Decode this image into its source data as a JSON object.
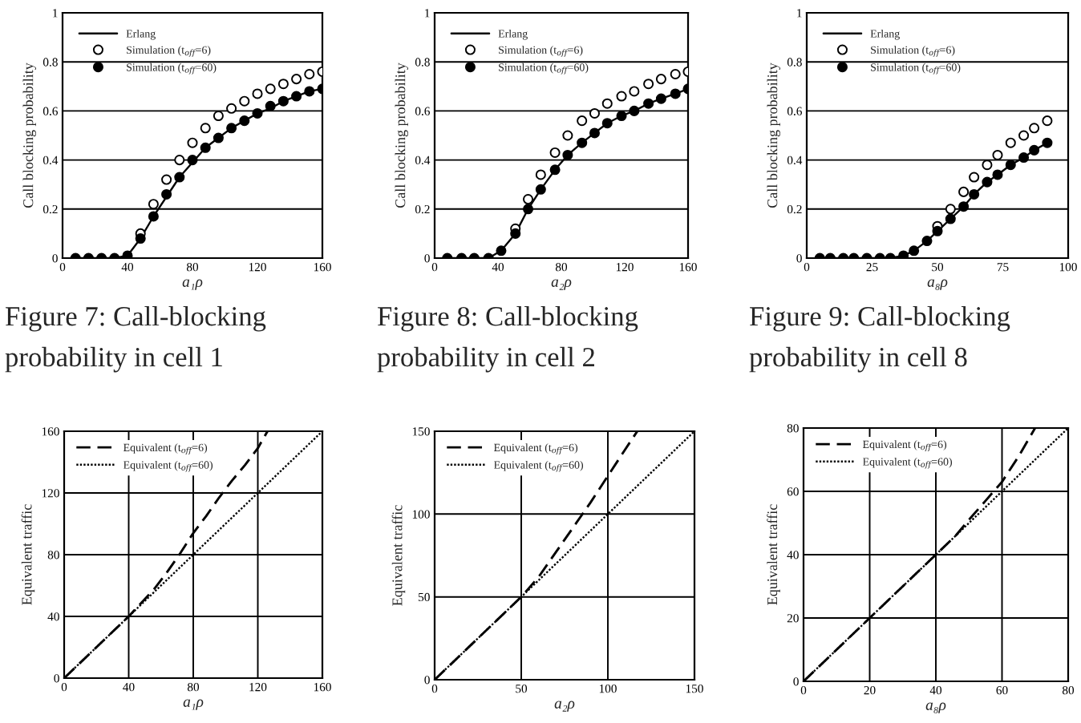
{
  "chart_data": [
    {
      "type": "line",
      "title": "Figure 7: Call-blocking probability in cell 1",
      "xlabel": "a₁ρ",
      "ylabel": "Call blocking probability",
      "x": [
        8,
        16,
        24,
        32,
        40,
        48,
        56,
        64,
        72,
        80,
        88,
        96,
        104,
        112,
        120,
        128,
        136,
        144,
        152,
        160
      ],
      "xlim": [
        0,
        160
      ],
      "xticks": [
        0,
        40,
        80,
        120,
        160
      ],
      "ylim": [
        0,
        1
      ],
      "yticks": [
        0,
        0.2,
        0.4,
        0.6,
        0.8,
        1
      ],
      "grid": "y",
      "legend": "top left",
      "series": [
        {
          "name": "Erlang",
          "type": "line",
          "color": "#000000",
          "line_style": "solid",
          "values": [
            0,
            0,
            0,
            0,
            0.01,
            0.08,
            0.17,
            0.25,
            0.33,
            0.39,
            0.45,
            0.49,
            0.53,
            0.56,
            0.59,
            0.61,
            0.64,
            0.66,
            0.68,
            0.69
          ]
        },
        {
          "name": "Simulation (t$_{off}$=6)",
          "type": "scatter",
          "marker": "circle",
          "color": "#ffffff",
          "values": [
            null,
            null,
            null,
            null,
            null,
            0.1,
            0.22,
            0.32,
            0.4,
            0.47,
            0.53,
            0.58,
            0.61,
            0.64,
            0.67,
            0.69,
            0.71,
            0.73,
            0.75,
            0.76
          ]
        },
        {
          "name": "Simulation (t$_{off}$=60)",
          "type": "scatter",
          "marker": "circle",
          "color": "#000000",
          "values": [
            0,
            0,
            0,
            0,
            0.01,
            0.08,
            0.17,
            0.26,
            0.33,
            0.4,
            0.45,
            0.49,
            0.53,
            0.56,
            0.59,
            0.62,
            0.64,
            0.66,
            0.68,
            0.69
          ]
        }
      ]
    },
    {
      "type": "line",
      "title": "Figure 8: Call-blocking probability in cell 2",
      "xlabel": "a₂ρ",
      "ylabel": "Call blocking probability",
      "x": [
        8,
        17,
        25,
        34,
        42,
        51,
        59,
        67,
        76,
        84,
        93,
        101,
        109,
        118,
        126,
        135,
        143,
        152,
        160
      ],
      "xlim": [
        0,
        160
      ],
      "xticks": [
        0,
        40,
        80,
        120,
        160
      ],
      "ylim": [
        0,
        1
      ],
      "yticks": [
        0,
        0.2,
        0.4,
        0.6,
        0.8,
        1
      ],
      "grid": "y",
      "legend": "top left",
      "series": [
        {
          "name": "Erlang",
          "type": "line",
          "color": "#000000",
          "line_style": "solid",
          "values": [
            0,
            0,
            0,
            0,
            0.03,
            0.1,
            0.2,
            0.28,
            0.36,
            0.42,
            0.47,
            0.51,
            0.55,
            0.58,
            0.6,
            0.63,
            0.65,
            0.67,
            0.69
          ]
        },
        {
          "name": "Simulation (t$_{off}$=6)",
          "type": "scatter",
          "marker": "circle",
          "color": "#ffffff",
          "values": [
            null,
            null,
            null,
            null,
            null,
            0.12,
            0.24,
            0.34,
            0.43,
            0.5,
            0.56,
            0.59,
            0.63,
            0.66,
            0.68,
            0.71,
            0.73,
            0.75,
            0.76
          ]
        },
        {
          "name": "Simulation (t$_{off}$=60)",
          "type": "scatter",
          "marker": "circle",
          "color": "#000000",
          "values": [
            0,
            0,
            0,
            0,
            0.03,
            0.1,
            0.2,
            0.28,
            0.36,
            0.42,
            0.47,
            0.51,
            0.55,
            0.58,
            0.6,
            0.63,
            0.65,
            0.67,
            0.69
          ]
        }
      ]
    },
    {
      "type": "line",
      "title": "Figure 9: Call-blocking probability in cell 8",
      "xlabel": "a₈ρ",
      "ylabel": "Call blocking probability",
      "x": [
        5,
        9,
        14,
        18,
        23,
        28,
        32,
        37,
        41,
        46,
        50,
        55,
        60,
        64,
        69,
        73,
        78,
        83,
        87,
        92
      ],
      "xlim": [
        0,
        100
      ],
      "xticks": [
        0,
        25,
        50,
        75,
        100
      ],
      "ylim": [
        0,
        1
      ],
      "yticks": [
        0,
        0.2,
        0.4,
        0.6,
        0.8,
        1
      ],
      "grid": "y",
      "legend": "top left",
      "series": [
        {
          "name": "Erlang",
          "type": "line",
          "color": "#000000",
          "line_style": "solid",
          "values": [
            0,
            0,
            0,
            0,
            0,
            0,
            0,
            0.01,
            0.03,
            0.07,
            0.11,
            0.16,
            0.21,
            0.26,
            0.31,
            0.34,
            0.38,
            0.41,
            0.44,
            0.47
          ]
        },
        {
          "name": "Simulation (t$_{off}$=6)",
          "type": "scatter",
          "marker": "circle",
          "color": "#ffffff",
          "values": [
            null,
            null,
            null,
            null,
            null,
            null,
            null,
            null,
            null,
            null,
            0.13,
            0.2,
            0.27,
            0.33,
            0.38,
            0.42,
            0.47,
            0.5,
            0.53,
            0.56
          ]
        },
        {
          "name": "Simulation (t$_{off}$=60)",
          "type": "scatter",
          "marker": "circle",
          "color": "#000000",
          "values": [
            0,
            0,
            0,
            0,
            0,
            0,
            0,
            0.01,
            0.03,
            0.07,
            0.11,
            0.16,
            0.21,
            0.26,
            0.31,
            0.34,
            0.38,
            0.41,
            0.44,
            0.47
          ]
        }
      ]
    },
    {
      "type": "line",
      "xlabel": "a₁ρ",
      "ylabel": "Equivalent traffic",
      "xlim": [
        0,
        160
      ],
      "xticks": [
        0,
        40,
        80,
        120,
        160
      ],
      "ylim": [
        0,
        160
      ],
      "yticks": [
        0,
        40,
        80,
        120,
        160
      ],
      "grid": true,
      "legend": "top left",
      "series": [
        {
          "name": "Equivalent (t$_{off}$=6)",
          "type": "line",
          "color": "#000000",
          "line_style": "dashed",
          "x": [
            0,
            8,
            16,
            24,
            32,
            40,
            48,
            56,
            64,
            72,
            80,
            88,
            96,
            104,
            112,
            120,
            126
          ],
          "values": [
            0,
            8,
            16,
            24,
            32,
            40,
            49,
            58,
            69,
            81,
            94,
            105,
            117,
            128,
            138,
            149,
            160
          ]
        },
        {
          "name": "Equivalent (t$_{off}$=60)",
          "type": "line",
          "color": "#000000",
          "line_style": "dotted",
          "x": [
            0,
            40,
            80,
            120,
            160
          ],
          "values": [
            0,
            40,
            80,
            120,
            160
          ]
        }
      ]
    },
    {
      "type": "line",
      "xlabel": "a₂ρ",
      "ylabel": "Equivalent traffic",
      "xlim": [
        0,
        150
      ],
      "xticks": [
        0,
        50,
        100,
        150
      ],
      "ylim": [
        0,
        150
      ],
      "yticks": [
        0,
        50,
        100,
        150
      ],
      "grid": true,
      "legend": "top left",
      "series": [
        {
          "name": "Equivalent (t$_{off}$=6)",
          "type": "line",
          "color": "#000000",
          "line_style": "dashed",
          "x": [
            0,
            10,
            20,
            30,
            40,
            50,
            60,
            70,
            80,
            90,
            100,
            110,
            117
          ],
          "values": [
            0,
            10,
            20,
            30,
            40,
            50,
            62,
            77,
            92,
            107,
            123,
            139,
            150
          ]
        },
        {
          "name": "Equivalent (t$_{off}$=60)",
          "type": "line",
          "color": "#000000",
          "line_style": "dotted",
          "x": [
            0,
            50,
            100,
            150
          ],
          "values": [
            0,
            50,
            100,
            150
          ]
        }
      ]
    },
    {
      "type": "line",
      "xlabel": "a₈ρ",
      "ylabel": "Equivalent traffic",
      "xlim": [
        0,
        80
      ],
      "xticks": [
        0,
        20,
        40,
        60,
        80
      ],
      "ylim": [
        0,
        80
      ],
      "yticks": [
        0,
        20,
        40,
        60,
        80
      ],
      "grid": true,
      "legend": "top left",
      "series": [
        {
          "name": "Equivalent (t$_{off}$=6)",
          "type": "line",
          "color": "#000000",
          "line_style": "dashed",
          "x": [
            0,
            10,
            20,
            30,
            40,
            46,
            50,
            55,
            60,
            65,
            70
          ],
          "values": [
            0,
            10,
            20,
            30,
            40,
            46,
            51,
            57,
            63,
            71,
            80
          ]
        },
        {
          "name": "Equivalent (t$_{off}$=60)",
          "type": "line",
          "color": "#000000",
          "line_style": "dotted",
          "x": [
            0,
            20,
            40,
            60,
            80
          ],
          "values": [
            0,
            20,
            40,
            60,
            80
          ]
        }
      ]
    }
  ]
}
